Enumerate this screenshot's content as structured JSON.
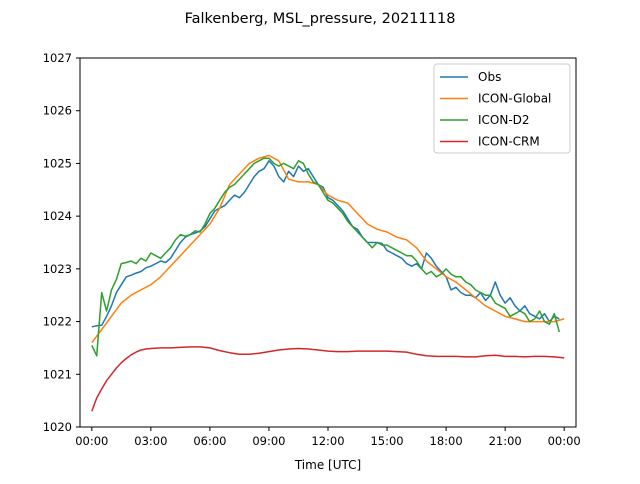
{
  "chart_data": {
    "type": "line",
    "title": "Falkenberg, MSL_pressure, 20211118",
    "xlabel": "Time [UTC]",
    "ylabel": "",
    "xlim": [
      -0.6,
      24.6
    ],
    "ylim": [
      1020,
      1027
    ],
    "x_ticks": [
      0,
      3,
      6,
      9,
      12,
      15,
      18,
      21,
      24
    ],
    "x_tick_labels": [
      "00:00",
      "03:00",
      "06:00",
      "09:00",
      "12:00",
      "15:00",
      "18:00",
      "21:00",
      "00:00"
    ],
    "y_ticks": [
      1020,
      1021,
      1022,
      1023,
      1024,
      1025,
      1026,
      1027
    ],
    "y_tick_labels": [
      "1020",
      "1021",
      "1022",
      "1023",
      "1024",
      "1025",
      "1026",
      "1027"
    ],
    "grid": false,
    "legend_position": "top-right",
    "series": [
      {
        "name": "Obs",
        "color": "#1f77b4",
        "x": [
          0,
          0.25,
          0.5,
          0.75,
          1,
          1.25,
          1.5,
          1.75,
          2,
          2.25,
          2.5,
          2.75,
          3,
          3.25,
          3.5,
          3.75,
          4,
          4.25,
          4.5,
          4.75,
          5,
          5.25,
          5.5,
          5.75,
          6,
          6.25,
          6.5,
          6.75,
          7,
          7.25,
          7.5,
          7.75,
          8,
          8.25,
          8.5,
          8.75,
          9,
          9.25,
          9.5,
          9.75,
          10,
          10.25,
          10.5,
          10.75,
          11,
          11.25,
          11.5,
          11.75,
          12,
          12.25,
          12.5,
          12.75,
          13,
          13.25,
          13.5,
          13.75,
          14,
          14.25,
          14.5,
          14.75,
          15,
          15.25,
          15.5,
          15.75,
          16,
          16.25,
          16.5,
          16.75,
          17,
          17.25,
          17.5,
          17.75,
          18,
          18.25,
          18.5,
          18.75,
          19,
          19.25,
          19.5,
          19.75,
          20,
          20.25,
          20.5,
          20.75,
          21,
          21.25,
          21.5,
          21.75,
          22,
          22.25,
          22.5,
          22.75,
          23,
          23.25,
          23.5,
          23.75
        ],
        "values": [
          1021.9,
          1021.92,
          1021.93,
          1022.1,
          1022.3,
          1022.55,
          1022.7,
          1022.85,
          1022.88,
          1022.92,
          1022.95,
          1023.02,
          1023.05,
          1023.1,
          1023.15,
          1023.12,
          1023.2,
          1023.35,
          1023.5,
          1023.6,
          1023.65,
          1023.68,
          1023.72,
          1023.8,
          1023.95,
          1024.1,
          1024.15,
          1024.2,
          1024.3,
          1024.4,
          1024.35,
          1024.45,
          1024.6,
          1024.75,
          1024.85,
          1024.9,
          1025.05,
          1024.95,
          1024.75,
          1024.65,
          1024.85,
          1024.75,
          1024.95,
          1024.85,
          1024.9,
          1024.75,
          1024.6,
          1024.55,
          1024.35,
          1024.3,
          1024.2,
          1024.1,
          1023.95,
          1023.8,
          1023.75,
          1023.6,
          1023.5,
          1023.5,
          1023.5,
          1023.48,
          1023.35,
          1023.3,
          1023.25,
          1023.2,
          1023.1,
          1023.05,
          1023.1,
          1023.0,
          1023.3,
          1023.2,
          1023.05,
          1022.95,
          1022.85,
          1022.6,
          1022.65,
          1022.55,
          1022.5,
          1022.5,
          1022.45,
          1022.55,
          1022.4,
          1022.5,
          1022.75,
          1022.5,
          1022.35,
          1022.45,
          1022.3,
          1022.2,
          1022.3,
          1022.15,
          1022.1,
          1022.05,
          1022.15,
          1022.0,
          1022.1,
          1022.05
        ]
      },
      {
        "name": "ICON-Global",
        "color": "#ff7f0e",
        "x": [
          0,
          0.5,
          1,
          1.5,
          2,
          2.5,
          3,
          3.5,
          4,
          4.5,
          5,
          5.5,
          6,
          6.5,
          7,
          7.5,
          8,
          8.5,
          9,
          9.5,
          10,
          10.5,
          11,
          11.5,
          12,
          12.5,
          13,
          13.5,
          14,
          14.5,
          15,
          15.5,
          16,
          16.5,
          17,
          17.5,
          18,
          18.5,
          19,
          19.5,
          20,
          20.5,
          21,
          21.5,
          22,
          22.5,
          23,
          23.5,
          24
        ],
        "values": [
          1021.6,
          1021.85,
          1022.1,
          1022.35,
          1022.5,
          1022.6,
          1022.7,
          1022.85,
          1023.05,
          1023.25,
          1023.45,
          1023.65,
          1023.85,
          1024.15,
          1024.6,
          1024.8,
          1025.0,
          1025.1,
          1025.15,
          1025.05,
          1024.7,
          1024.65,
          1024.65,
          1024.6,
          1024.4,
          1024.3,
          1024.25,
          1024.05,
          1023.85,
          1023.75,
          1023.7,
          1023.6,
          1023.55,
          1023.4,
          1023.15,
          1023.0,
          1022.85,
          1022.75,
          1022.6,
          1022.45,
          1022.3,
          1022.2,
          1022.1,
          1022.05,
          1022.0,
          1022.0,
          1022.0,
          1022.0,
          1022.05
        ]
      },
      {
        "name": "ICON-D2",
        "color": "#2ca02c",
        "x": [
          0,
          0.25,
          0.5,
          0.75,
          1,
          1.25,
          1.5,
          1.75,
          2,
          2.25,
          2.5,
          2.75,
          3,
          3.25,
          3.5,
          3.75,
          4,
          4.25,
          4.5,
          4.75,
          5,
          5.25,
          5.5,
          5.75,
          6,
          6.25,
          6.5,
          6.75,
          7,
          7.25,
          7.5,
          7.75,
          8,
          8.25,
          8.5,
          8.75,
          9,
          9.25,
          9.5,
          9.75,
          10,
          10.25,
          10.5,
          10.75,
          11,
          11.25,
          11.5,
          11.75,
          12,
          12.25,
          12.5,
          12.75,
          13,
          13.25,
          13.5,
          13.75,
          14,
          14.25,
          14.5,
          14.75,
          15,
          15.25,
          15.5,
          15.75,
          16,
          16.25,
          16.5,
          16.75,
          17,
          17.25,
          17.5,
          17.75,
          18,
          18.25,
          18.5,
          18.75,
          19,
          19.25,
          19.5,
          19.75,
          20,
          20.25,
          20.5,
          20.75,
          21,
          21.25,
          21.5,
          21.75,
          22,
          22.25,
          22.5,
          22.75,
          23,
          23.25,
          23.5,
          23.75
        ],
        "values": [
          1021.55,
          1021.35,
          1022.55,
          1022.2,
          1022.6,
          1022.8,
          1023.1,
          1023.12,
          1023.15,
          1023.1,
          1023.2,
          1023.15,
          1023.3,
          1023.25,
          1023.2,
          1023.3,
          1023.4,
          1023.55,
          1023.65,
          1023.62,
          1023.65,
          1023.72,
          1023.7,
          1023.85,
          1024.05,
          1024.15,
          1024.3,
          1024.45,
          1024.55,
          1024.6,
          1024.7,
          1024.8,
          1024.9,
          1025.0,
          1025.05,
          1025.1,
          1025.1,
          1025.0,
          1024.95,
          1025.0,
          1024.95,
          1024.9,
          1025.05,
          1025.0,
          1024.8,
          1024.65,
          1024.6,
          1024.45,
          1024.3,
          1024.25,
          1024.15,
          1024.05,
          1023.9,
          1023.8,
          1023.7,
          1023.6,
          1023.5,
          1023.4,
          1023.5,
          1023.45,
          1023.45,
          1023.4,
          1023.35,
          1023.3,
          1023.25,
          1023.25,
          1023.15,
          1023.0,
          1022.9,
          1022.95,
          1022.85,
          1022.9,
          1023.0,
          1022.9,
          1022.85,
          1022.85,
          1022.75,
          1022.7,
          1022.6,
          1022.55,
          1022.5,
          1022.5,
          1022.35,
          1022.3,
          1022.25,
          1022.1,
          1022.15,
          1022.2,
          1022.15,
          1022.0,
          1022.05,
          1022.2,
          1022.0,
          1021.95,
          1022.15,
          1021.8
        ]
      },
      {
        "name": "ICON-CRM",
        "color": "#d62728",
        "x": [
          0,
          0.25,
          0.5,
          0.75,
          1,
          1.25,
          1.5,
          1.75,
          2,
          2.25,
          2.5,
          2.75,
          3,
          3.5,
          4,
          4.5,
          5,
          5.5,
          6,
          6.5,
          7,
          7.5,
          8,
          8.5,
          9,
          9.5,
          10,
          10.5,
          11,
          11.5,
          12,
          12.5,
          13,
          13.5,
          14,
          14.5,
          15,
          15.5,
          16,
          16.5,
          17,
          17.5,
          18,
          18.5,
          19,
          19.5,
          20,
          20.5,
          21,
          21.5,
          22,
          22.5,
          23,
          23.5,
          24
        ],
        "values": [
          1020.3,
          1020.55,
          1020.72,
          1020.88,
          1021.0,
          1021.12,
          1021.22,
          1021.3,
          1021.37,
          1021.42,
          1021.46,
          1021.48,
          1021.49,
          1021.5,
          1021.5,
          1021.51,
          1021.52,
          1021.52,
          1021.5,
          1021.45,
          1021.41,
          1021.38,
          1021.38,
          1021.4,
          1021.43,
          1021.46,
          1021.48,
          1021.49,
          1021.48,
          1021.46,
          1021.44,
          1021.43,
          1021.43,
          1021.44,
          1021.44,
          1021.44,
          1021.44,
          1021.43,
          1021.42,
          1021.38,
          1021.35,
          1021.34,
          1021.34,
          1021.34,
          1021.33,
          1021.33,
          1021.35,
          1021.36,
          1021.34,
          1021.34,
          1021.33,
          1021.34,
          1021.34,
          1021.33,
          1021.31
        ]
      }
    ]
  }
}
